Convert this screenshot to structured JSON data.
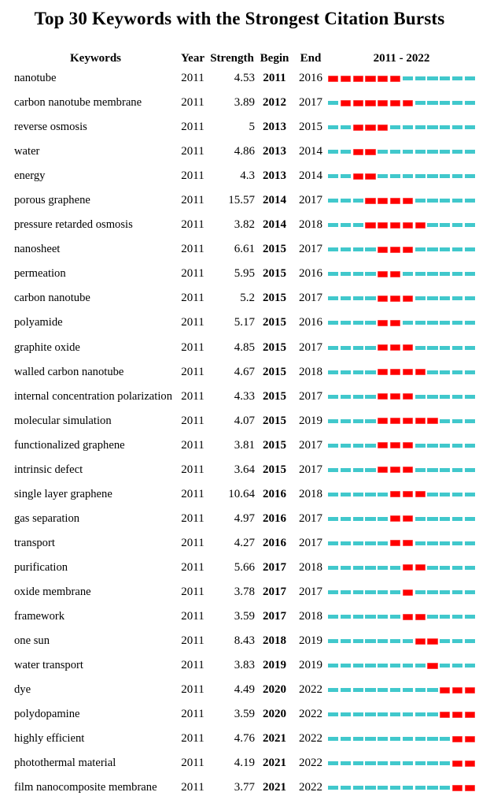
{
  "title": "Top 30 Keywords with the Strongest Citation Bursts",
  "header": {
    "keywords": "Keywords",
    "year": "Year",
    "strength": "Strength",
    "begin": "Begin",
    "end": "End",
    "range": "2011 - 2022"
  },
  "colors": {
    "burst": "#FF0000",
    "base": "#41C8CC"
  },
  "chart_data": {
    "type": "table",
    "title": "Top 30 Keywords with the Strongest Citation Bursts",
    "columns": [
      "Keywords",
      "Year",
      "Strength",
      "Begin",
      "End",
      "2011 - 2022"
    ],
    "timeline_range": [
      2011,
      2022
    ],
    "legend": {
      "burst_segment": "years within citation burst (begin–end), red",
      "base_segment": "years outside burst, teal"
    },
    "rows": [
      {
        "keyword": "nanotube",
        "year": 2011,
        "strength": "4.53",
        "begin": 2011,
        "end": 2016
      },
      {
        "keyword": "carbon nanotube membrane",
        "year": 2011,
        "strength": "3.89",
        "begin": 2012,
        "end": 2017
      },
      {
        "keyword": "reverse osmosis",
        "year": 2011,
        "strength": "5",
        "begin": 2013,
        "end": 2015
      },
      {
        "keyword": "water",
        "year": 2011,
        "strength": "4.86",
        "begin": 2013,
        "end": 2014
      },
      {
        "keyword": "energy",
        "year": 2011,
        "strength": "4.3",
        "begin": 2013,
        "end": 2014
      },
      {
        "keyword": "porous graphene",
        "year": 2011,
        "strength": "15.57",
        "begin": 2014,
        "end": 2017
      },
      {
        "keyword": "pressure retarded osmosis",
        "year": 2011,
        "strength": "3.82",
        "begin": 2014,
        "end": 2018
      },
      {
        "keyword": "nanosheet",
        "year": 2011,
        "strength": "6.61",
        "begin": 2015,
        "end": 2017
      },
      {
        "keyword": "permeation",
        "year": 2011,
        "strength": "5.95",
        "begin": 2015,
        "end": 2016
      },
      {
        "keyword": "carbon nanotube",
        "year": 2011,
        "strength": "5.2",
        "begin": 2015,
        "end": 2017
      },
      {
        "keyword": "polyamide",
        "year": 2011,
        "strength": "5.17",
        "begin": 2015,
        "end": 2016
      },
      {
        "keyword": "graphite oxide",
        "year": 2011,
        "strength": "4.85",
        "begin": 2015,
        "end": 2017
      },
      {
        "keyword": "walled carbon nanotube",
        "year": 2011,
        "strength": "4.67",
        "begin": 2015,
        "end": 2018
      },
      {
        "keyword": "internal concentration polarization",
        "year": 2011,
        "strength": "4.33",
        "begin": 2015,
        "end": 2017
      },
      {
        "keyword": "molecular simulation",
        "year": 2011,
        "strength": "4.07",
        "begin": 2015,
        "end": 2019
      },
      {
        "keyword": "functionalized graphene",
        "year": 2011,
        "strength": "3.81",
        "begin": 2015,
        "end": 2017
      },
      {
        "keyword": "intrinsic defect",
        "year": 2011,
        "strength": "3.64",
        "begin": 2015,
        "end": 2017
      },
      {
        "keyword": "single layer graphene",
        "year": 2011,
        "strength": "10.64",
        "begin": 2016,
        "end": 2018
      },
      {
        "keyword": "gas separation",
        "year": 2011,
        "strength": "4.97",
        "begin": 2016,
        "end": 2017
      },
      {
        "keyword": "transport",
        "year": 2011,
        "strength": "4.27",
        "begin": 2016,
        "end": 2017
      },
      {
        "keyword": "purification",
        "year": 2011,
        "strength": "5.66",
        "begin": 2017,
        "end": 2018
      },
      {
        "keyword": "oxide membrane",
        "year": 2011,
        "strength": "3.78",
        "begin": 2017,
        "end": 2017
      },
      {
        "keyword": "framework",
        "year": 2011,
        "strength": "3.59",
        "begin": 2017,
        "end": 2018
      },
      {
        "keyword": "one sun",
        "year": 2011,
        "strength": "8.43",
        "begin": 2018,
        "end": 2019
      },
      {
        "keyword": "water transport",
        "year": 2011,
        "strength": "3.83",
        "begin": 2019,
        "end": 2019
      },
      {
        "keyword": "dye",
        "year": 2011,
        "strength": "4.49",
        "begin": 2020,
        "end": 2022
      },
      {
        "keyword": "polydopamine",
        "year": 2011,
        "strength": "3.59",
        "begin": 2020,
        "end": 2022
      },
      {
        "keyword": "highly efficient",
        "year": 2011,
        "strength": "4.76",
        "begin": 2021,
        "end": 2022
      },
      {
        "keyword": "photothermal material",
        "year": 2011,
        "strength": "4.19",
        "begin": 2021,
        "end": 2022
      },
      {
        "keyword": "film nanocomposite membrane",
        "year": 2011,
        "strength": "3.77",
        "begin": 2021,
        "end": 2022
      }
    ]
  }
}
